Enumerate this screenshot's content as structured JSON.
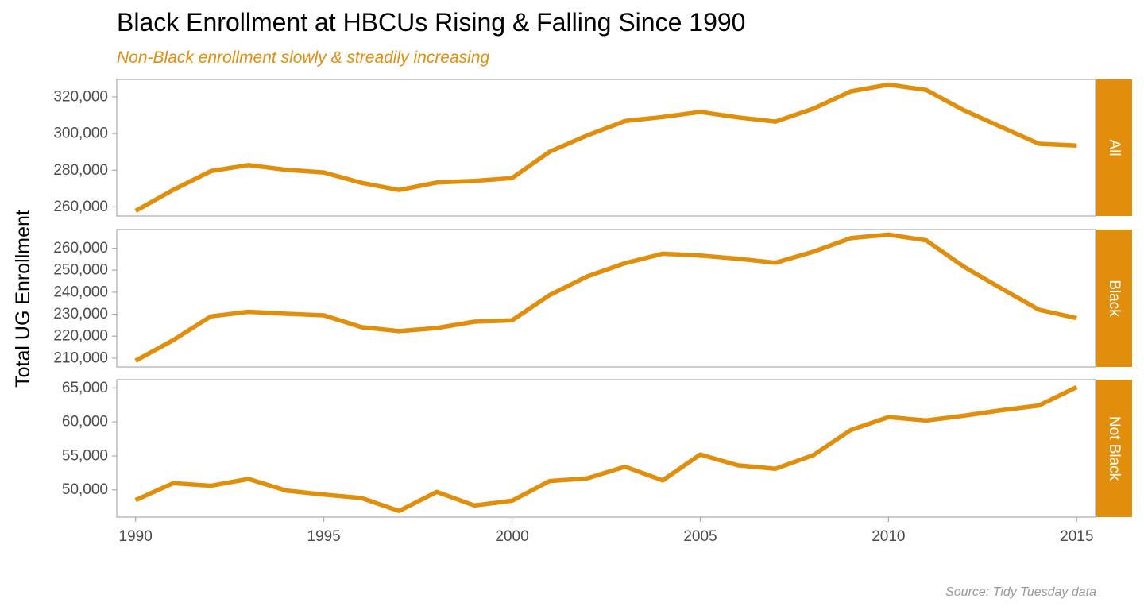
{
  "title": "Black Enrollment at HBCUs Rising & Falling Since 1990",
  "subtitle": "Non-Black enrollment slowly & streadily increasing",
  "caption": "Source: Tidy Tuesday data",
  "colors": {
    "line": "#E08E0B",
    "strip": "#E08E0B",
    "subtitle": "#E08E0B",
    "panel_border": "#AAAAAA",
    "tick_label": "#4D4D4D",
    "caption": "#999999"
  },
  "chart_data": {
    "type": "line",
    "facet": "rows",
    "xlabel": "",
    "ylabel": "Total UG Enrollment",
    "xlim": [
      1989.5,
      2015.5
    ],
    "x_ticks": [
      1990,
      1995,
      2000,
      2005,
      2010,
      2015
    ],
    "x_tick_labels": [
      "1990",
      "1995",
      "2000",
      "2005",
      "2010",
      "2015"
    ],
    "x": [
      1990,
      1991,
      1992,
      1993,
      1994,
      1995,
      1996,
      1997,
      1998,
      1999,
      2000,
      2001,
      2002,
      2003,
      2004,
      2005,
      2006,
      2007,
      2008,
      2009,
      2010,
      2011,
      2012,
      2013,
      2014,
      2015
    ],
    "panels": [
      {
        "strip_label": "All",
        "ylim": [
          255000,
          329500
        ],
        "y_ticks": [
          260000,
          280000,
          300000,
          320000
        ],
        "y_tick_labels": [
          "260,000",
          "280,000",
          "300,000",
          "320,000"
        ],
        "values": [
          257800,
          269300,
          279500,
          282800,
          280200,
          278800,
          273100,
          269200,
          273300,
          274200,
          275700,
          290100,
          299000,
          306800,
          309000,
          311800,
          308800,
          306500,
          313500,
          323000,
          326700,
          323800,
          312700,
          303500,
          294400,
          293400
        ]
      },
      {
        "strip_label": "Black",
        "ylim": [
          206000,
          268500
        ],
        "y_ticks": [
          210000,
          220000,
          230000,
          240000,
          250000,
          260000
        ],
        "y_tick_labels": [
          "210,000",
          "220,000",
          "230,000",
          "240,000",
          "250,000",
          "260,000"
        ],
        "values": [
          208800,
          218200,
          229000,
          231100,
          230200,
          229500,
          224100,
          222300,
          223700,
          226600,
          227200,
          238700,
          247200,
          253200,
          257500,
          256700,
          255200,
          253400,
          258400,
          264600,
          266200,
          263600,
          251600,
          241700,
          232000,
          228200
        ]
      },
      {
        "strip_label": "Not Black",
        "ylim": [
          46000,
          66200
        ],
        "y_ticks": [
          50000,
          55000,
          60000,
          65000
        ],
        "y_tick_labels": [
          "50,000",
          "55,000",
          "60,000",
          "65,000"
        ],
        "values": [
          48500,
          51000,
          50600,
          51600,
          49900,
          49300,
          48800,
          46900,
          49700,
          47700,
          48400,
          51300,
          51700,
          53400,
          51400,
          55200,
          53600,
          53100,
          55100,
          58800,
          60700,
          60200,
          60900,
          61700,
          62400,
          65100
        ]
      }
    ]
  }
}
